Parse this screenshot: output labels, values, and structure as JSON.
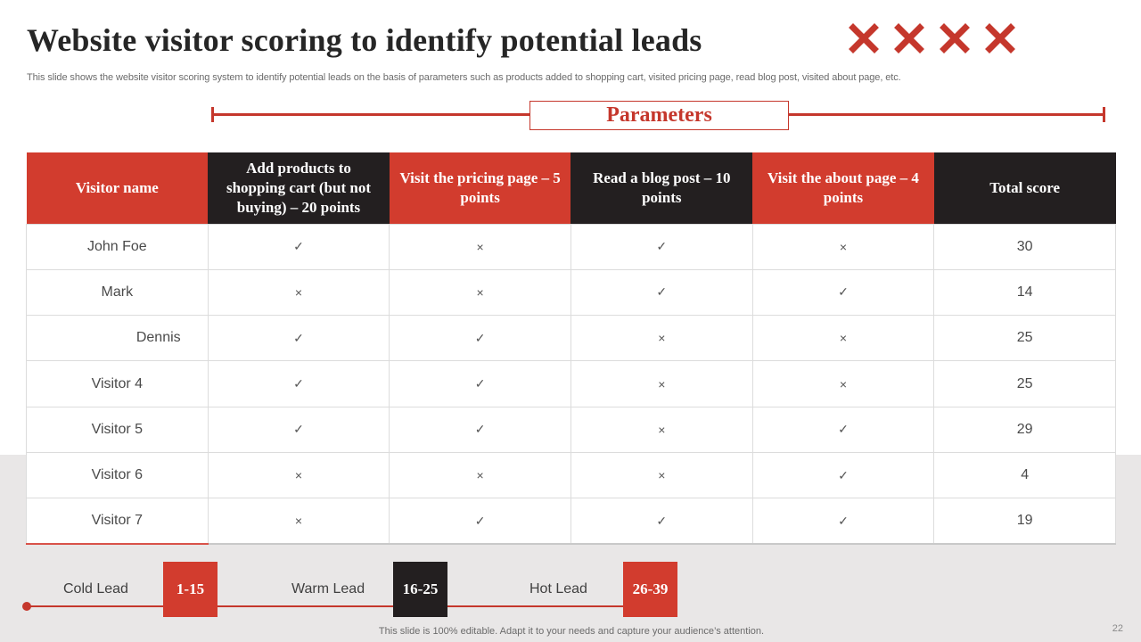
{
  "title": "Website visitor scoring to identify potential leads",
  "subtitle": "This slide shows the website visitor scoring system to identify potential leads on the basis of parameters such as products added to shopping cart, visited pricing page, read blog post, visited about page, etc.",
  "decor_icons": [
    "x-mark-icon",
    "x-mark-icon",
    "x-mark-icon",
    "x-mark-icon"
  ],
  "accent_color": "#d23c2e",
  "dark_color": "#231f20",
  "parameters_label": "Parameters",
  "table": {
    "headers": [
      "Visitor name",
      "Add products to shopping cart (but not buying) – 20 points",
      "Visit the pricing page – 5 points",
      "Read a blog post – 10 points",
      "Visit the about page – 4 points",
      "Total score"
    ],
    "rows": [
      [
        "John Foe",
        "✓",
        "×",
        "✓",
        "×",
        "30"
      ],
      [
        "Mark",
        "×",
        "×",
        "✓",
        "✓",
        "14"
      ],
      [
        "Dennis",
        "✓",
        "✓",
        "×",
        "×",
        "25"
      ],
      [
        "Visitor 4",
        "✓",
        "✓",
        "×",
        "×",
        "25"
      ],
      [
        "Visitor 5",
        "✓",
        "✓",
        "×",
        "✓",
        "29"
      ],
      [
        "Visitor 6",
        "×",
        "×",
        "×",
        "✓",
        "4"
      ],
      [
        "Visitor 7",
        "×",
        "✓",
        "✓",
        "✓",
        "19"
      ]
    ]
  },
  "leads": [
    {
      "label": "Cold Lead",
      "range": "1-15"
    },
    {
      "label": "Warm Lead",
      "range": "16-25"
    },
    {
      "label": "Hot Lead",
      "range": "26-39"
    }
  ],
  "footer": "This slide is 100% editable. Adapt it to your needs and capture your audience’s attention.",
  "page_number": "22"
}
